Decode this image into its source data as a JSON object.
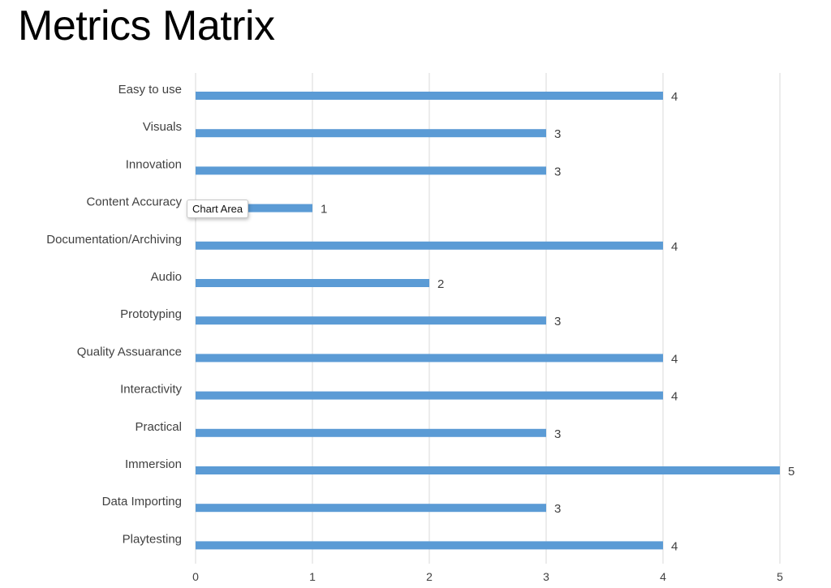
{
  "slide": {
    "title": "Metrics Matrix"
  },
  "tooltip": {
    "label": "Chart Area"
  },
  "colors": {
    "bar": "#5b9bd5",
    "gridline": "#d9d9d9",
    "axis_text": "#404040",
    "data_label": "#404040"
  },
  "chart_data": {
    "type": "bar",
    "orientation": "horizontal",
    "categories": [
      "Easy to use",
      "Visuals",
      "Innovation",
      "Content Accuracy",
      "Documentation/Archiving",
      "Audio",
      "Prototyping",
      "Quality Assuarance",
      "Interactivity",
      "Practical",
      "Immersion",
      "Data Importing",
      "Playtesting"
    ],
    "values": [
      4,
      3,
      3,
      1,
      4,
      2,
      3,
      4,
      4,
      3,
      5,
      3,
      4
    ],
    "xlim": [
      0,
      5
    ],
    "xticks": [
      0,
      1,
      2,
      3,
      4,
      5
    ],
    "grid": true,
    "data_labels": true,
    "legend": "none"
  }
}
